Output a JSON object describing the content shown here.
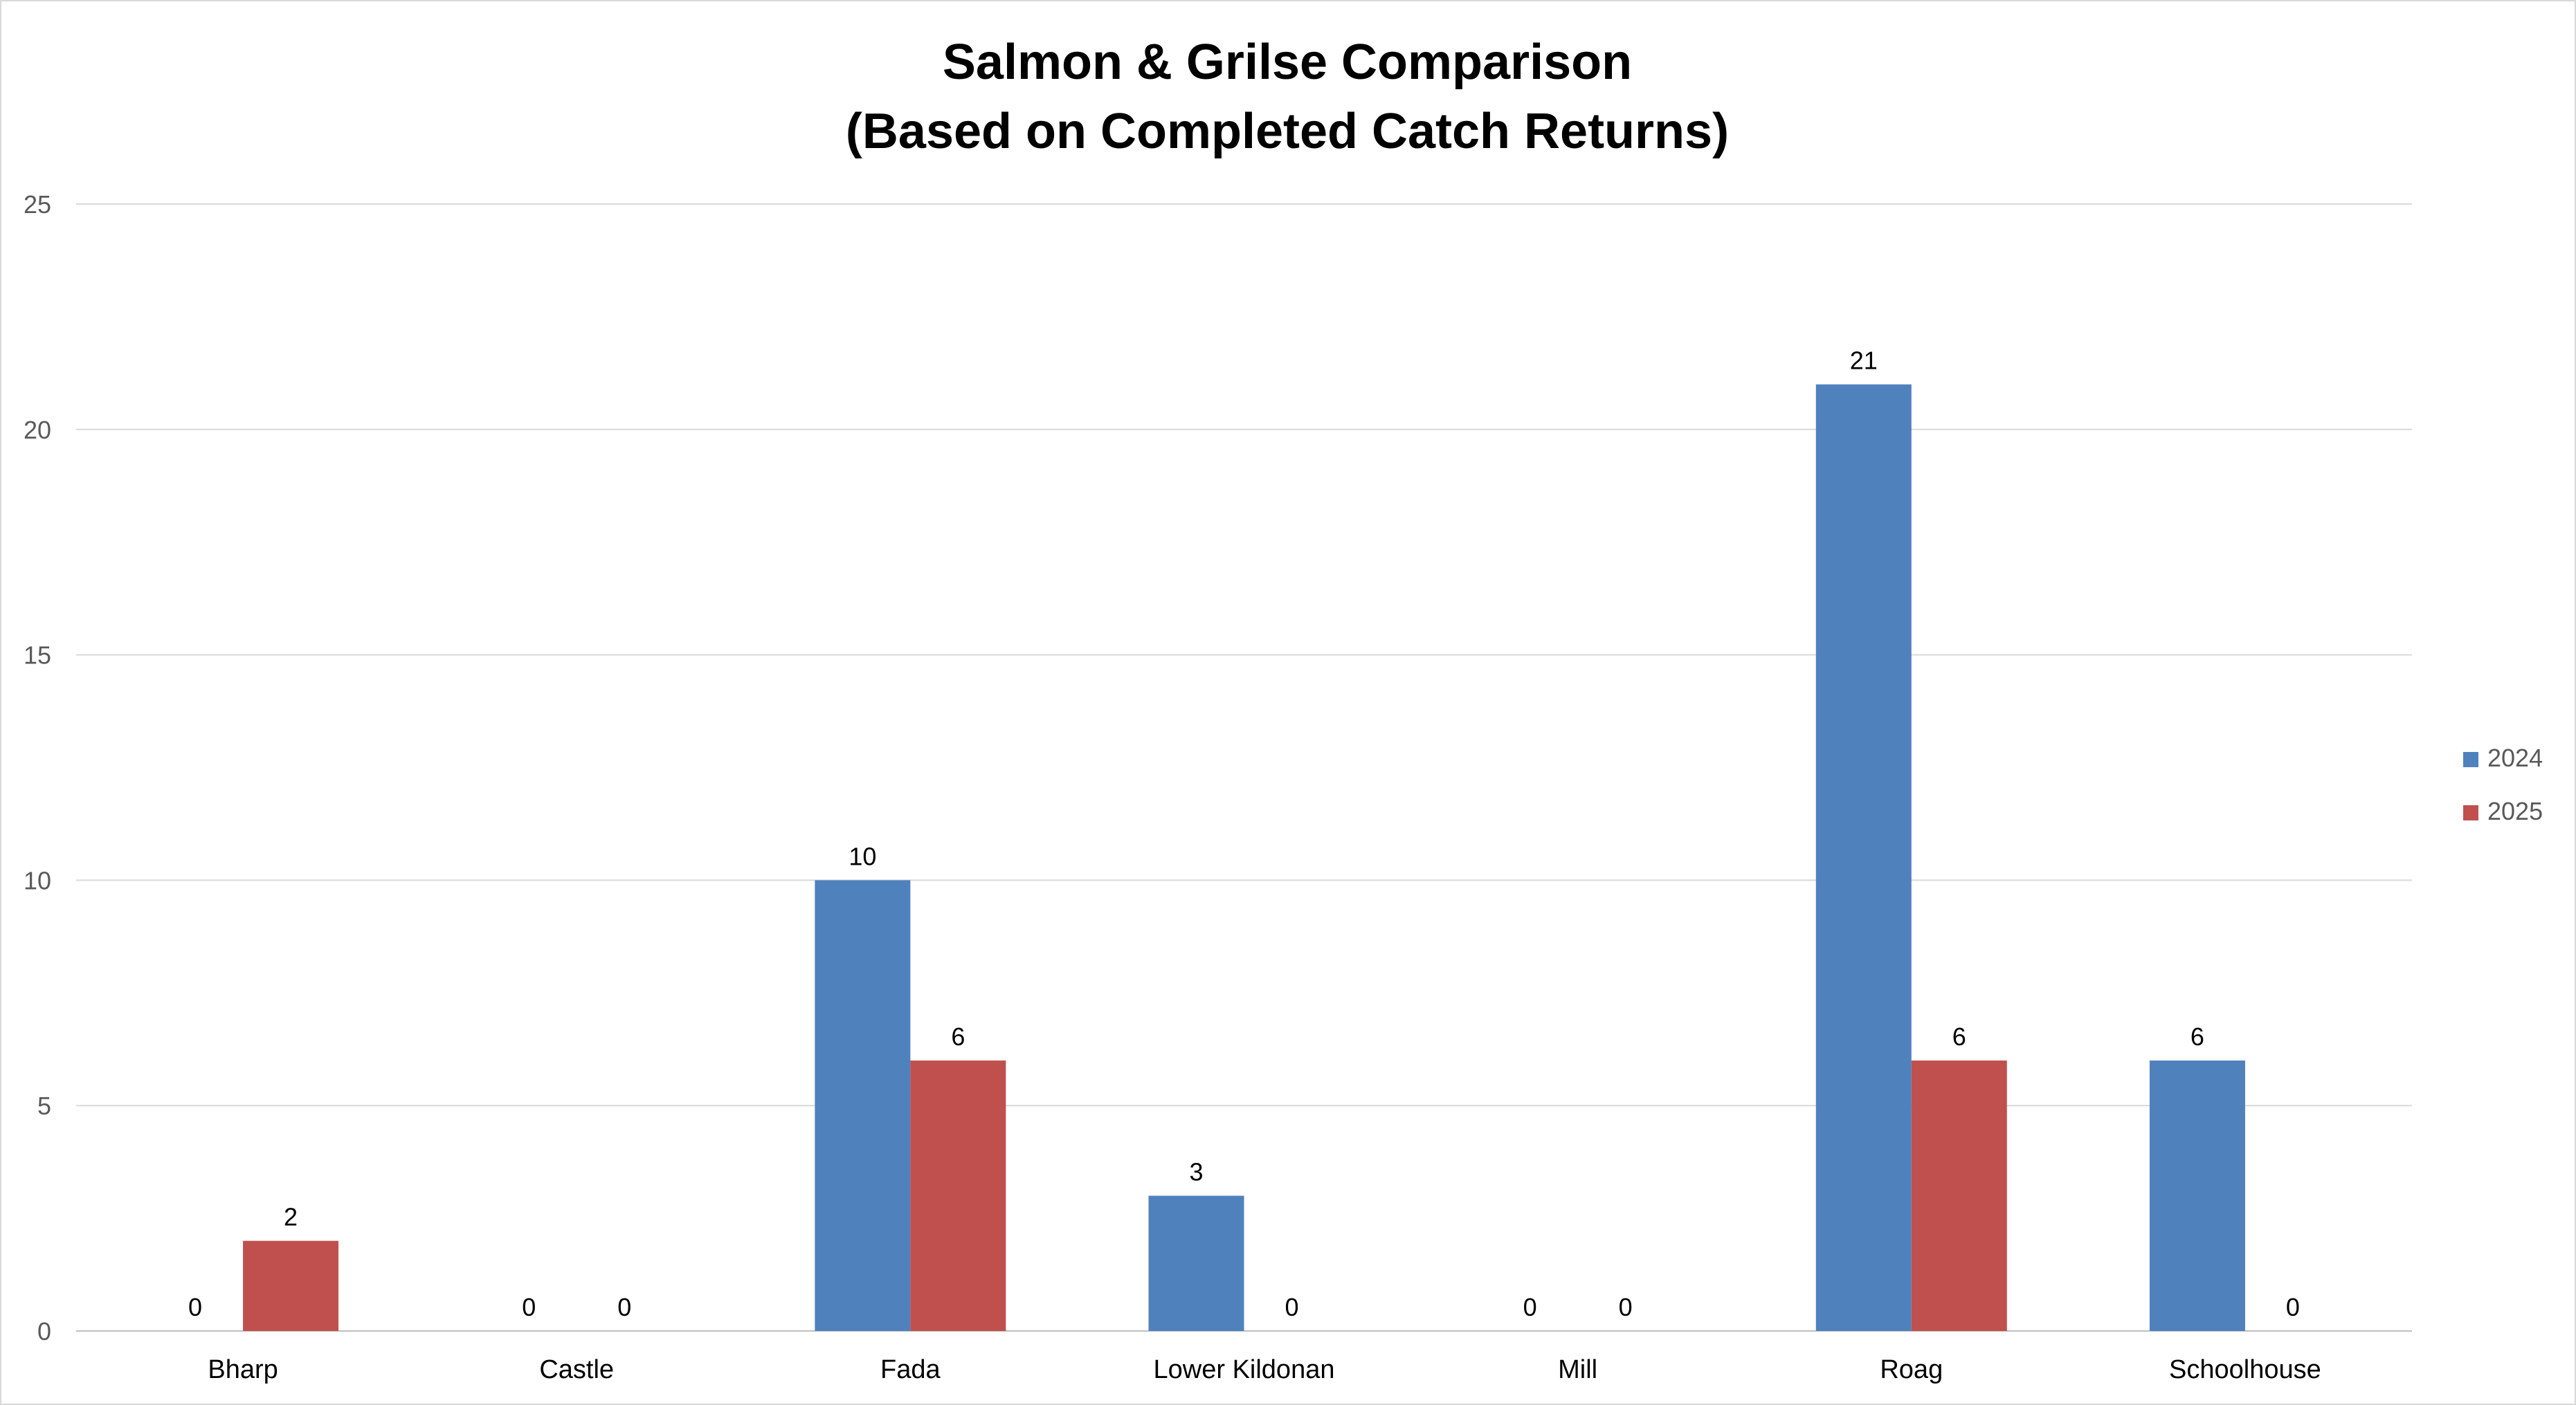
{
  "chart_data": {
    "type": "bar",
    "title": "Salmon & Grilse Comparison",
    "subtitle": "(Based on Completed Catch Returns)",
    "xlabel": "",
    "ylabel": "",
    "ylim": [
      0,
      25
    ],
    "yticks": [
      "0",
      "5",
      "10",
      "15",
      "20",
      "25"
    ],
    "grid": true,
    "legend_position": "right",
    "categories": [
      "Bharp",
      "Castle",
      "Fada",
      "Lower Kildonan",
      "Mill",
      "Roag",
      "Schoolhouse"
    ],
    "series": [
      {
        "name": "2024",
        "color": "#4f81bd",
        "values": [
          0,
          0,
          10,
          3,
          0,
          21,
          6
        ]
      },
      {
        "name": "2025",
        "color": "#c0504d",
        "values": [
          2,
          0,
          6,
          0,
          0,
          6,
          0
        ]
      }
    ]
  }
}
